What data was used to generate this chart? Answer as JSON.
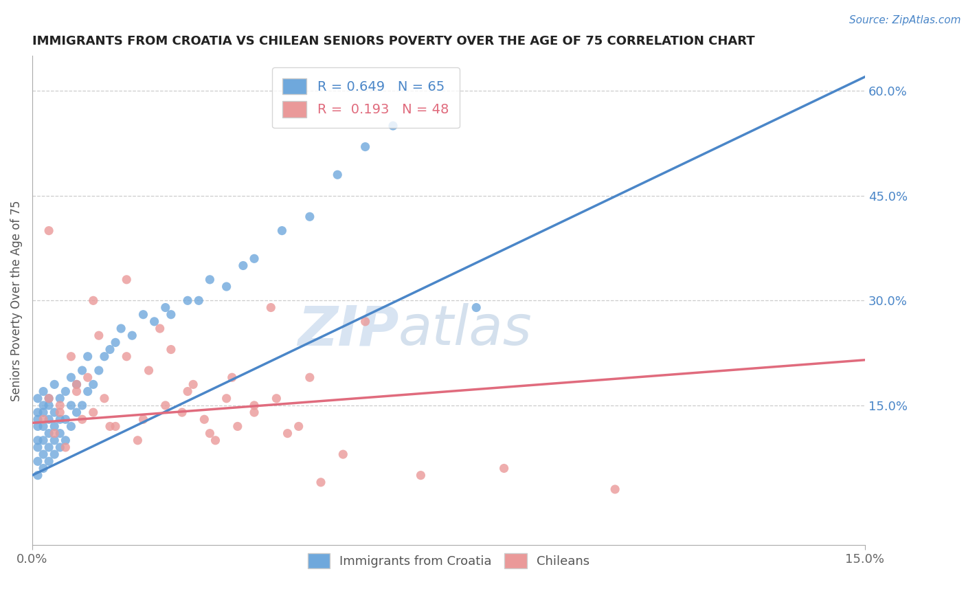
{
  "title": "IMMIGRANTS FROM CROATIA VS CHILEAN SENIORS POVERTY OVER THE AGE OF 75 CORRELATION CHART",
  "source": "Source: ZipAtlas.com",
  "ylabel": "Seniors Poverty Over the Age of 75",
  "xlim": [
    0.0,
    0.15
  ],
  "ylim": [
    -0.05,
    0.65
  ],
  "yticks_right": [
    0.15,
    0.3,
    0.45,
    0.6
  ],
  "yticklabels_right": [
    "15.0%",
    "30.0%",
    "45.0%",
    "60.0%"
  ],
  "blue_R": 0.649,
  "blue_N": 65,
  "pink_R": 0.193,
  "pink_N": 48,
  "blue_color": "#6fa8dc",
  "pink_color": "#ea9999",
  "blue_line_color": "#4a86c8",
  "pink_line_color": "#e06b7d",
  "blue_line_x0": 0.0,
  "blue_line_y0": 0.05,
  "blue_line_x1": 0.15,
  "blue_line_y1": 0.62,
  "pink_line_x0": 0.0,
  "pink_line_y0": 0.125,
  "pink_line_x1": 0.15,
  "pink_line_y1": 0.215,
  "legend_blue_label": "Immigrants from Croatia",
  "legend_pink_label": "Chileans",
  "watermark_zip": "ZIP",
  "watermark_atlas": "atlas",
  "background_color": "#ffffff",
  "grid_color": "#cccccc",
  "blue_scatter_x": [
    0.001,
    0.001,
    0.001,
    0.001,
    0.001,
    0.001,
    0.001,
    0.001,
    0.002,
    0.002,
    0.002,
    0.002,
    0.002,
    0.002,
    0.002,
    0.003,
    0.003,
    0.003,
    0.003,
    0.003,
    0.003,
    0.004,
    0.004,
    0.004,
    0.004,
    0.004,
    0.005,
    0.005,
    0.005,
    0.005,
    0.006,
    0.006,
    0.006,
    0.007,
    0.007,
    0.007,
    0.008,
    0.008,
    0.009,
    0.009,
    0.01,
    0.01,
    0.011,
    0.012,
    0.013,
    0.014,
    0.015,
    0.016,
    0.018,
    0.02,
    0.022,
    0.024,
    0.025,
    0.028,
    0.03,
    0.032,
    0.035,
    0.038,
    0.04,
    0.045,
    0.05,
    0.055,
    0.06,
    0.065,
    0.08
  ],
  "blue_scatter_y": [
    0.05,
    0.07,
    0.09,
    0.1,
    0.12,
    0.13,
    0.14,
    0.16,
    0.06,
    0.08,
    0.1,
    0.12,
    0.14,
    0.15,
    0.17,
    0.07,
    0.09,
    0.11,
    0.13,
    0.15,
    0.16,
    0.08,
    0.1,
    0.12,
    0.14,
    0.18,
    0.09,
    0.11,
    0.13,
    0.16,
    0.1,
    0.13,
    0.17,
    0.12,
    0.15,
    0.19,
    0.14,
    0.18,
    0.15,
    0.2,
    0.17,
    0.22,
    0.18,
    0.2,
    0.22,
    0.23,
    0.24,
    0.26,
    0.25,
    0.28,
    0.27,
    0.29,
    0.28,
    0.3,
    0.3,
    0.33,
    0.32,
    0.35,
    0.36,
    0.4,
    0.42,
    0.48,
    0.52,
    0.55,
    0.29
  ],
  "pink_scatter_x": [
    0.002,
    0.003,
    0.004,
    0.005,
    0.006,
    0.007,
    0.008,
    0.009,
    0.01,
    0.011,
    0.012,
    0.013,
    0.015,
    0.017,
    0.019,
    0.021,
    0.023,
    0.025,
    0.027,
    0.029,
    0.031,
    0.033,
    0.035,
    0.037,
    0.04,
    0.043,
    0.046,
    0.05,
    0.003,
    0.005,
    0.008,
    0.011,
    0.014,
    0.017,
    0.02,
    0.024,
    0.028,
    0.032,
    0.036,
    0.04,
    0.044,
    0.048,
    0.052,
    0.056,
    0.06,
    0.07,
    0.085,
    0.105
  ],
  "pink_scatter_y": [
    0.13,
    0.4,
    0.11,
    0.15,
    0.09,
    0.22,
    0.17,
    0.13,
    0.19,
    0.14,
    0.25,
    0.16,
    0.12,
    0.33,
    0.1,
    0.2,
    0.26,
    0.23,
    0.14,
    0.18,
    0.13,
    0.1,
    0.16,
    0.12,
    0.15,
    0.29,
    0.11,
    0.19,
    0.16,
    0.14,
    0.18,
    0.3,
    0.12,
    0.22,
    0.13,
    0.15,
    0.17,
    0.11,
    0.19,
    0.14,
    0.16,
    0.12,
    0.04,
    0.08,
    0.27,
    0.05,
    0.06,
    0.03
  ]
}
